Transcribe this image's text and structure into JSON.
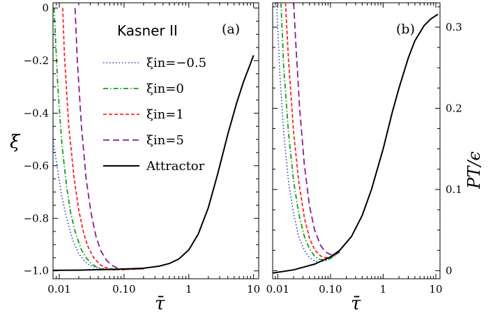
{
  "chart_data": [
    {
      "type": "line",
      "panel_label": "(a)",
      "annotation": "Kasner II",
      "xlabel": "τ̄",
      "ylabel": "ξ",
      "x_scale": "log",
      "xlim": [
        0.008,
        12
      ],
      "ylim": [
        -1.03,
        0.02
      ],
      "x_ticks": [
        {
          "v": 0.01,
          "label": "0.01"
        },
        {
          "v": 0.1,
          "label": "0.10"
        },
        {
          "v": 1,
          "label": "1"
        },
        {
          "v": 10,
          "label": "10"
        }
      ],
      "y_ticks": [
        {
          "v": -1.0,
          "label": "−1.0"
        },
        {
          "v": -0.8,
          "label": "−0.8"
        },
        {
          "v": -0.6,
          "label": "−0.6"
        },
        {
          "v": -0.4,
          "label": "−0.4"
        },
        {
          "v": -0.2,
          "label": "−0.2"
        },
        {
          "v": 0.0,
          "label": "0"
        }
      ],
      "legend": {
        "placement": "top-right"
      },
      "series": [
        {
          "name": "ξin=−0.5",
          "style": "dotted",
          "color": "#3030d0",
          "x": [
            0.008,
            0.0095,
            0.011,
            0.013,
            0.016,
            0.02,
            0.025,
            0.03,
            0.04,
            0.05,
            0.07,
            0.1,
            0.2
          ],
          "y": [
            -0.5,
            -0.62,
            -0.72,
            -0.8,
            -0.88,
            -0.935,
            -0.965,
            -0.98,
            -0.99,
            -0.995,
            -0.996,
            -0.995,
            -0.992
          ]
        },
        {
          "name": "ξin=0",
          "style": "dashdot",
          "color": "#10a010",
          "x": [
            0.0083,
            0.0095,
            0.011,
            0.013,
            0.015,
            0.018,
            0.022,
            0.026,
            0.032,
            0.04,
            0.05,
            0.07,
            0.1,
            0.2
          ],
          "y": [
            0.0,
            -0.3,
            -0.52,
            -0.68,
            -0.78,
            -0.86,
            -0.92,
            -0.95,
            -0.975,
            -0.988,
            -0.994,
            -0.996,
            -0.995,
            -0.992
          ]
        },
        {
          "name": "ξin=1",
          "style": "dashed",
          "color": "#ff2020",
          "x": [
            0.0113,
            0.012,
            0.014,
            0.017,
            0.02,
            0.024,
            0.028,
            0.034,
            0.042,
            0.05,
            0.065,
            0.08,
            0.1,
            0.2
          ],
          "y": [
            0.0,
            -0.18,
            -0.45,
            -0.65,
            -0.77,
            -0.86,
            -0.91,
            -0.95,
            -0.975,
            -0.986,
            -0.993,
            -0.995,
            -0.995,
            -0.992
          ]
        },
        {
          "name": "ξin=5",
          "style": "longdash",
          "color": "#8a1a9a",
          "x": [
            0.0175,
            0.019,
            0.022,
            0.026,
            0.031,
            0.037,
            0.044,
            0.053,
            0.063,
            0.075,
            0.09,
            0.11,
            0.14,
            0.2
          ],
          "y": [
            0.0,
            -0.2,
            -0.45,
            -0.65,
            -0.78,
            -0.87,
            -0.925,
            -0.958,
            -0.977,
            -0.987,
            -0.992,
            -0.993,
            -0.993,
            -0.992
          ]
        },
        {
          "name": "Attractor",
          "style": "solid",
          "color": "#000000",
          "x": [
            0.008,
            0.02,
            0.05,
            0.1,
            0.2,
            0.35,
            0.5,
            0.7,
            1.0,
            1.4,
            2.0,
            2.8,
            4.0,
            5.5,
            7.0,
            9.0,
            10.0
          ],
          "y": [
            -0.998,
            -0.997,
            -0.995,
            -0.993,
            -0.99,
            -0.982,
            -0.972,
            -0.955,
            -0.92,
            -0.86,
            -0.76,
            -0.63,
            -0.48,
            -0.36,
            -0.28,
            -0.21,
            -0.18
          ]
        }
      ]
    },
    {
      "type": "line",
      "panel_label": "(b)",
      "xlabel": "τ̄",
      "ylabel": "PT/ϵ",
      "x_scale": "log",
      "xlim": [
        0.008,
        12
      ],
      "ylim": [
        -0.01,
        0.33
      ],
      "x_ticks": [
        {
          "v": 0.01,
          "label": "0.01"
        },
        {
          "v": 0.1,
          "label": "0.10"
        },
        {
          "v": 1,
          "label": "1"
        },
        {
          "v": 10,
          "label": "10"
        }
      ],
      "y_ticks": [
        {
          "v": 0.0,
          "label": "0"
        },
        {
          "v": 0.1,
          "label": "0.1"
        },
        {
          "v": 0.2,
          "label": "0.2"
        },
        {
          "v": 0.3,
          "label": "0.3"
        }
      ],
      "series": [
        {
          "name": "ξin=−0.5",
          "style": "dotted",
          "color": "#3030d0",
          "x": [
            0.0095,
            0.011,
            0.013,
            0.016,
            0.02,
            0.025,
            0.032,
            0.04,
            0.05,
            0.06,
            0.08,
            0.1,
            0.15
          ],
          "y": [
            0.33,
            0.24,
            0.17,
            0.11,
            0.07,
            0.042,
            0.025,
            0.016,
            0.012,
            0.011,
            0.012,
            0.015,
            0.023
          ]
        },
        {
          "name": "ξin=0",
          "style": "dashdot",
          "color": "#10a010",
          "x": [
            0.0115,
            0.013,
            0.016,
            0.02,
            0.025,
            0.032,
            0.04,
            0.05,
            0.06,
            0.08,
            0.1,
            0.15
          ],
          "y": [
            0.33,
            0.25,
            0.17,
            0.11,
            0.07,
            0.042,
            0.027,
            0.018,
            0.014,
            0.013,
            0.015,
            0.023
          ]
        },
        {
          "name": "ξin=1",
          "style": "dashed",
          "color": "#ff2020",
          "x": [
            0.014,
            0.016,
            0.02,
            0.025,
            0.032,
            0.04,
            0.05,
            0.065,
            0.08,
            0.1,
            0.15
          ],
          "y": [
            0.33,
            0.26,
            0.17,
            0.11,
            0.065,
            0.04,
            0.026,
            0.018,
            0.016,
            0.017,
            0.023
          ]
        },
        {
          "name": "ξin=5",
          "style": "longdash",
          "color": "#8a1a9a",
          "x": [
            0.02,
            0.022,
            0.026,
            0.032,
            0.04,
            0.05,
            0.065,
            0.08,
            0.1,
            0.12,
            0.15
          ],
          "y": [
            0.33,
            0.28,
            0.2,
            0.13,
            0.08,
            0.05,
            0.031,
            0.023,
            0.02,
            0.02,
            0.023
          ]
        },
        {
          "name": "Attractor",
          "style": "solid",
          "color": "#000000",
          "x": [
            0.008,
            0.02,
            0.05,
            0.1,
            0.15,
            0.25,
            0.4,
            0.6,
            1.0,
            1.5,
            2.0,
            3.0,
            4.0,
            6.0,
            8.0,
            11.0
          ],
          "y": [
            -0.003,
            0.001,
            0.008,
            0.017,
            0.025,
            0.042,
            0.068,
            0.1,
            0.15,
            0.196,
            0.225,
            0.262,
            0.283,
            0.302,
            0.31,
            0.316
          ]
        }
      ]
    }
  ]
}
